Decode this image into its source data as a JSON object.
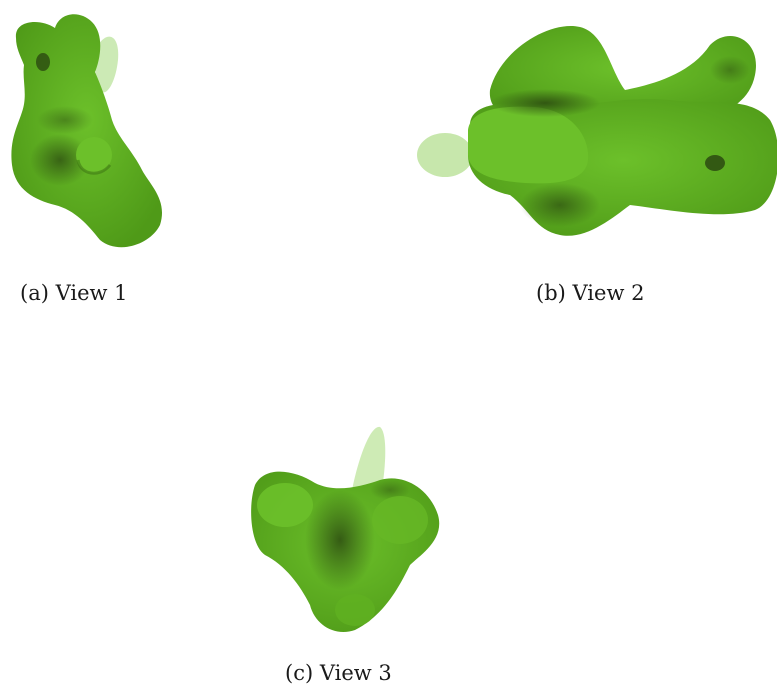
{
  "figure": {
    "subfigures": [
      {
        "caption": "(a) View 1"
      },
      {
        "caption": "(b) View 2"
      },
      {
        "caption": "(c) View 3"
      }
    ],
    "colors": {
      "surface": "#5ba91f",
      "surface_light": "#6cc02a",
      "shadow": "#2b4a10",
      "background": "#ffffff"
    }
  }
}
